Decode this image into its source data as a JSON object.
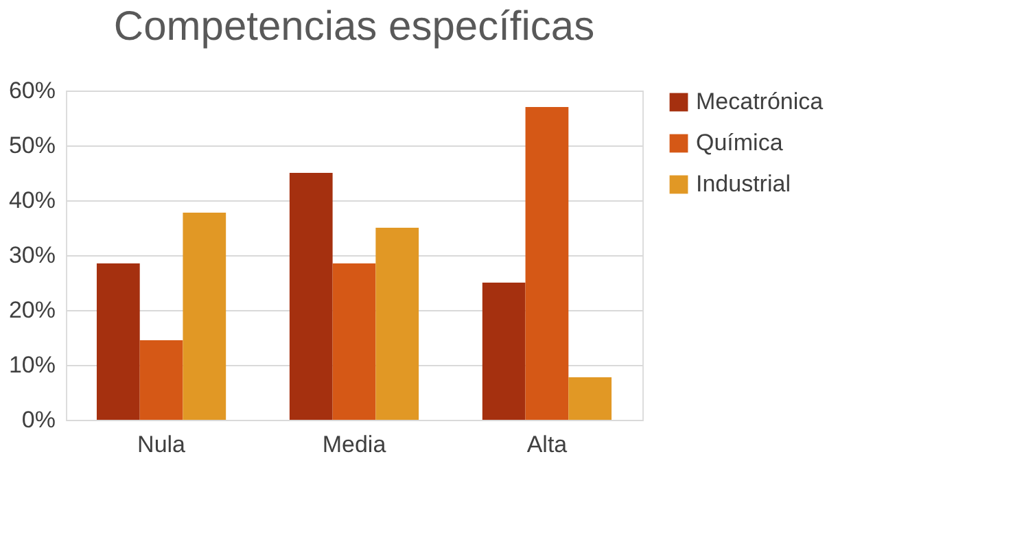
{
  "chart_data": {
    "type": "bar",
    "title": "Competencias específicas",
    "categories": [
      "Nula",
      "Media",
      "Alta"
    ],
    "series": [
      {
        "name": "Mecatrónica",
        "color": "#a5300f",
        "values": [
          28.5,
          45,
          25
        ]
      },
      {
        "name": "Química",
        "color": "#d55816",
        "values": [
          14.5,
          28.5,
          57
        ]
      },
      {
        "name": "Industrial",
        "color": "#e19825",
        "values": [
          37.75,
          35,
          7.75
        ]
      }
    ],
    "ylim": [
      0,
      60
    ],
    "yticks": [
      {
        "value": 0,
        "label": "0%"
      },
      {
        "value": 10,
        "label": "10%"
      },
      {
        "value": 20,
        "label": "20%"
      },
      {
        "value": 30,
        "label": "30%"
      },
      {
        "value": 40,
        "label": "40%"
      },
      {
        "value": 50,
        "label": "50%"
      },
      {
        "value": 60,
        "label": "60%"
      }
    ],
    "grid": "y",
    "legend": "right"
  }
}
